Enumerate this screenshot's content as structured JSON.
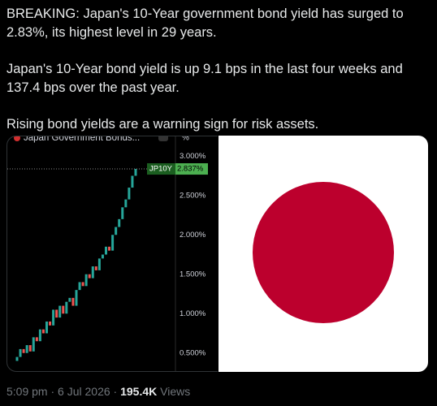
{
  "tweet": {
    "paragraphs": [
      "BREAKING: Japan's 10-Year government bond yield has surged to 2.83%, its highest level in 29 years.",
      "Japan's 10-Year bond yield is up 9.1 bps in the last four weeks and 137.4 bps over the past year.",
      "Rising bond yields are a warning sign for risk assets."
    ]
  },
  "chart": {
    "type": "candlestick",
    "title": "Japan Government Bonds...",
    "unit": "%",
    "symbol": "JP10Y",
    "last_value": {
      "value": 2.837,
      "label": "2.837%"
    },
    "ylim": [
      0.25,
      3.25
    ],
    "yticks": [
      {
        "value": 3.0,
        "label": "3.000%"
      },
      {
        "value": 2.5,
        "label": "2.500%"
      },
      {
        "value": 2.0,
        "label": "2.000%"
      },
      {
        "value": 1.5,
        "label": "1.500%"
      },
      {
        "value": 1.0,
        "label": "1.000%"
      },
      {
        "value": 0.5,
        "label": "0.500%"
      }
    ],
    "open": [
      0.4,
      0.45,
      0.55,
      0.5,
      0.6,
      0.52,
      0.7,
      0.65,
      0.8,
      0.75,
      0.9,
      0.85,
      1.05,
      0.95,
      1.1,
      1.0,
      1.15,
      1.2,
      1.1,
      1.3,
      1.4,
      1.35,
      1.5,
      1.45,
      1.6,
      1.55,
      1.7,
      1.75,
      1.85,
      1.8,
      2.0,
      2.1,
      2.2,
      2.35,
      2.45,
      2.6,
      2.75
    ],
    "close": [
      0.45,
      0.55,
      0.5,
      0.6,
      0.52,
      0.7,
      0.65,
      0.8,
      0.75,
      0.9,
      0.85,
      1.05,
      0.95,
      1.1,
      1.0,
      1.15,
      1.2,
      1.1,
      1.3,
      1.4,
      1.35,
      1.5,
      1.45,
      1.6,
      1.55,
      1.7,
      1.75,
      1.85,
      1.8,
      2.0,
      2.1,
      2.2,
      2.35,
      2.45,
      2.6,
      2.75,
      2.837
    ],
    "up_color": "#26a69a",
    "down_color": "#ef5350"
  },
  "footer": {
    "time": "5:09 pm",
    "separator": "·",
    "date": "6 Jul 2026",
    "views_count": "195.4K",
    "views_label": "Views"
  }
}
